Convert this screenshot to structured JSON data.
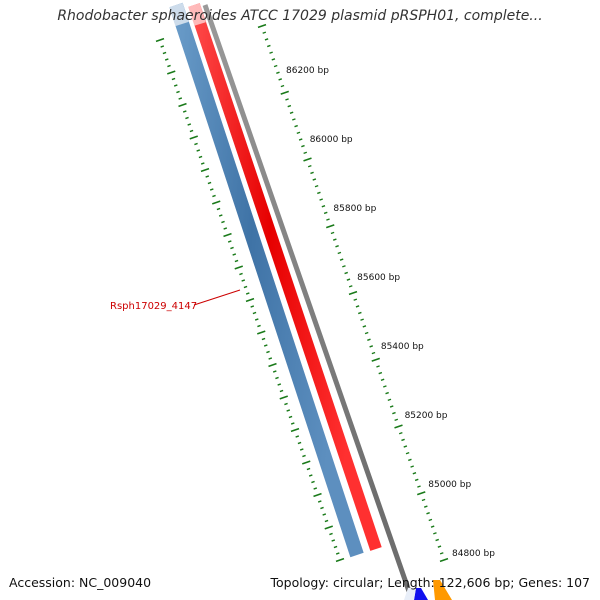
{
  "header": {
    "title": "Rhodobacter sphaeroides ATCC 17029 plasmid pRSPH01, complete..."
  },
  "map": {
    "ruler_ticks": [
      "86200 bp",
      "86000 bp",
      "85800 bp",
      "85600 bp",
      "85400 bp",
      "85200 bp",
      "85000 bp",
      "84800 bp"
    ],
    "gene_label": "Rsph17029_4147",
    "colors": {
      "backbone": "#808080",
      "gene_forward": "#ff0000",
      "gene_reverse": "#4a7fb0",
      "tick": "#1a7a1a",
      "gene_label": "#cc0000",
      "edge_feature_blue": "#1010ee",
      "edge_feature_orange": "#ff9900"
    }
  },
  "footer": {
    "accession": "Accession: NC_009040",
    "summary": "Topology: circular; Length: 122,606 bp; Genes: 107"
  }
}
